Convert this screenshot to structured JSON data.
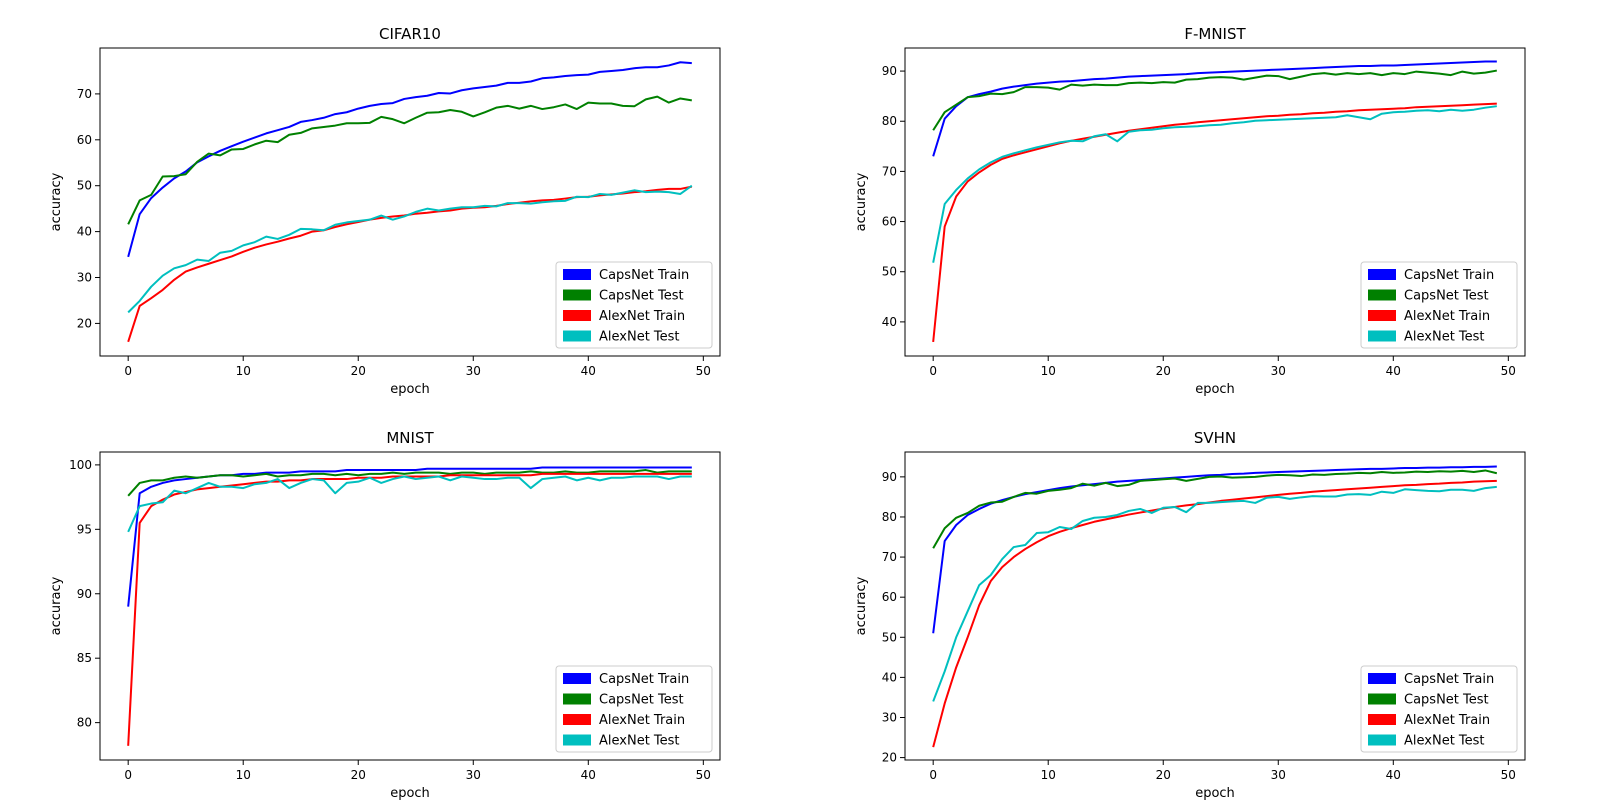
{
  "chart_data": [
    {
      "type": "line",
      "title": "CIFAR10",
      "xlabel": "epoch",
      "ylabel": "accuracy",
      "xlim": [
        -2.45,
        51.45
      ],
      "ylim": [
        12.9,
        80.0
      ],
      "xticks": [
        0,
        10,
        20,
        30,
        40,
        50
      ],
      "yticks": [
        20,
        30,
        40,
        50,
        60,
        70
      ],
      "legend_position": "lower-right",
      "series": [
        {
          "name": "CapsNet Train",
          "color": "#0000ff",
          "values": [
            34.5,
            43.8,
            47.3,
            49.6,
            51.6,
            53.1,
            55.1,
            56.4,
            57.6,
            58.6,
            59.6,
            60.5,
            61.4,
            62.1,
            62.8,
            63.9,
            64.3,
            64.8,
            65.6,
            66.0,
            66.8,
            67.4,
            67.8,
            68.0,
            68.9,
            69.3,
            69.6,
            70.2,
            70.1,
            70.8,
            71.2,
            71.5,
            71.8,
            72.4,
            72.4,
            72.7,
            73.4,
            73.6,
            73.9,
            74.1,
            74.2,
            74.8,
            75.0,
            75.2,
            75.6,
            75.8,
            75.8,
            76.2,
            76.9,
            76.7
          ]
        },
        {
          "name": "CapsNet Test",
          "color": "#008000",
          "values": [
            41.6,
            46.8,
            48.0,
            52.0,
            52.1,
            52.5,
            55.2,
            57.0,
            56.6,
            57.9,
            58.0,
            59.0,
            59.8,
            59.5,
            61.1,
            61.5,
            62.5,
            62.8,
            63.1,
            63.6,
            63.6,
            63.7,
            65.0,
            64.5,
            63.6,
            64.8,
            65.9,
            66.0,
            66.5,
            66.1,
            65.1,
            66.0,
            67.0,
            67.4,
            66.8,
            67.4,
            66.7,
            67.1,
            67.7,
            66.7,
            68.1,
            67.9,
            67.9,
            67.4,
            67.3,
            68.8,
            69.4,
            68.1,
            69.0,
            68.6
          ]
        },
        {
          "name": "AlexNet Train",
          "color": "#ff0000",
          "values": [
            16.0,
            23.8,
            25.5,
            27.3,
            29.5,
            31.3,
            32.2,
            33.0,
            33.8,
            34.6,
            35.6,
            36.5,
            37.2,
            37.8,
            38.5,
            39.1,
            40.0,
            40.3,
            41.0,
            41.6,
            42.1,
            42.6,
            43.0,
            43.3,
            43.5,
            43.9,
            44.1,
            44.4,
            44.6,
            45.0,
            45.2,
            45.3,
            45.6,
            46.0,
            46.3,
            46.6,
            46.8,
            46.9,
            47.2,
            47.5,
            47.6,
            47.9,
            48.1,
            48.3,
            48.6,
            48.8,
            49.1,
            49.3,
            49.3,
            49.8
          ]
        },
        {
          "name": "AlexNet Test",
          "color": "#00bfbf",
          "values": [
            22.4,
            24.9,
            28.0,
            30.4,
            32.0,
            32.7,
            33.9,
            33.6,
            35.4,
            35.8,
            37.0,
            37.7,
            38.9,
            38.4,
            39.3,
            40.6,
            40.5,
            40.3,
            41.5,
            42.0,
            42.3,
            42.6,
            43.5,
            42.6,
            43.3,
            44.3,
            45.0,
            44.6,
            45.0,
            45.3,
            45.3,
            45.6,
            45.5,
            46.2,
            46.2,
            46.1,
            46.4,
            46.6,
            46.7,
            47.6,
            47.5,
            48.2,
            48.0,
            48.5,
            49.0,
            48.6,
            48.7,
            48.6,
            48.2,
            50.0
          ]
        }
      ]
    },
    {
      "type": "line",
      "title": "F-MNIST",
      "xlabel": "epoch",
      "ylabel": "accuracy",
      "xlim": [
        -2.45,
        51.45
      ],
      "ylim": [
        33.2,
        94.6
      ],
      "xticks": [
        0,
        10,
        20,
        30,
        40,
        50
      ],
      "yticks": [
        40,
        50,
        60,
        70,
        80,
        90
      ],
      "legend_position": "lower-right",
      "series": [
        {
          "name": "CapsNet Train",
          "color": "#0000ff",
          "values": [
            73.0,
            80.5,
            83.0,
            84.8,
            85.4,
            85.9,
            86.5,
            86.9,
            87.2,
            87.5,
            87.7,
            87.9,
            88.0,
            88.2,
            88.4,
            88.5,
            88.7,
            88.9,
            89.0,
            89.1,
            89.2,
            89.3,
            89.4,
            89.6,
            89.7,
            89.8,
            89.9,
            90.0,
            90.1,
            90.2,
            90.3,
            90.4,
            90.5,
            90.6,
            90.7,
            90.8,
            90.9,
            91.0,
            91.0,
            91.1,
            91.1,
            91.2,
            91.3,
            91.4,
            91.5,
            91.6,
            91.7,
            91.8,
            91.9,
            91.9
          ]
        },
        {
          "name": "CapsNet Test",
          "color": "#008000",
          "values": [
            78.2,
            81.8,
            83.3,
            84.8,
            85.0,
            85.5,
            85.4,
            85.8,
            86.8,
            86.8,
            86.7,
            86.3,
            87.3,
            87.1,
            87.3,
            87.2,
            87.2,
            87.6,
            87.7,
            87.6,
            87.8,
            87.7,
            88.3,
            88.4,
            88.7,
            88.8,
            88.7,
            88.3,
            88.7,
            89.1,
            89.0,
            88.4,
            88.9,
            89.4,
            89.6,
            89.3,
            89.6,
            89.4,
            89.6,
            89.2,
            89.6,
            89.4,
            89.9,
            89.7,
            89.5,
            89.2,
            89.9,
            89.5,
            89.7,
            90.1
          ]
        },
        {
          "name": "AlexNet Train",
          "color": "#ff0000",
          "values": [
            36.0,
            59.0,
            65.0,
            68.0,
            69.8,
            71.3,
            72.5,
            73.2,
            73.8,
            74.4,
            75.0,
            75.6,
            76.1,
            76.5,
            76.9,
            77.3,
            77.7,
            78.1,
            78.4,
            78.7,
            79.0,
            79.3,
            79.5,
            79.8,
            80.0,
            80.2,
            80.4,
            80.6,
            80.8,
            81.0,
            81.1,
            81.3,
            81.4,
            81.6,
            81.7,
            81.9,
            82.0,
            82.2,
            82.3,
            82.4,
            82.5,
            82.6,
            82.8,
            82.9,
            83.0,
            83.1,
            83.2,
            83.3,
            83.4,
            83.5
          ]
        },
        {
          "name": "AlexNet Test",
          "color": "#00bfbf",
          "values": [
            51.8,
            63.5,
            66.3,
            68.6,
            70.4,
            71.8,
            72.9,
            73.6,
            74.2,
            74.8,
            75.3,
            75.8,
            76.1,
            76.0,
            77.0,
            77.4,
            76.0,
            77.9,
            78.2,
            78.3,
            78.6,
            78.8,
            78.9,
            79.0,
            79.2,
            79.3,
            79.6,
            79.8,
            80.1,
            80.2,
            80.3,
            80.4,
            80.5,
            80.6,
            80.7,
            80.8,
            81.2,
            80.8,
            80.4,
            81.5,
            81.8,
            81.9,
            82.1,
            82.2,
            82.0,
            82.3,
            82.1,
            82.3,
            82.7,
            83.0
          ]
        }
      ]
    },
    {
      "type": "line",
      "title": "MNIST",
      "xlabel": "epoch",
      "ylabel": "accuracy",
      "xlim": [
        -2.45,
        51.45
      ],
      "ylim": [
        77.1,
        101.0
      ],
      "xticks": [
        0,
        10,
        20,
        30,
        40,
        50
      ],
      "yticks": [
        80,
        85,
        90,
        95,
        100
      ],
      "legend_position": "lower-right",
      "series": [
        {
          "name": "CapsNet Train",
          "color": "#0000ff",
          "values": [
            89.0,
            97.8,
            98.3,
            98.6,
            98.8,
            98.9,
            99.0,
            99.1,
            99.2,
            99.2,
            99.3,
            99.3,
            99.4,
            99.4,
            99.4,
            99.5,
            99.5,
            99.5,
            99.5,
            99.6,
            99.6,
            99.6,
            99.6,
            99.6,
            99.6,
            99.6,
            99.7,
            99.7,
            99.7,
            99.7,
            99.7,
            99.7,
            99.7,
            99.7,
            99.7,
            99.7,
            99.8,
            99.8,
            99.8,
            99.8,
            99.8,
            99.8,
            99.8,
            99.8,
            99.8,
            99.8,
            99.8,
            99.8,
            99.8,
            99.8
          ]
        },
        {
          "name": "CapsNet Test",
          "color": "#008000",
          "values": [
            97.6,
            98.6,
            98.8,
            98.8,
            99.0,
            99.1,
            99.0,
            99.1,
            99.2,
            99.2,
            99.1,
            99.2,
            99.3,
            99.1,
            99.2,
            99.2,
            99.3,
            99.3,
            99.2,
            99.3,
            99.2,
            99.3,
            99.3,
            99.4,
            99.3,
            99.4,
            99.4,
            99.4,
            99.3,
            99.4,
            99.4,
            99.3,
            99.4,
            99.4,
            99.4,
            99.5,
            99.4,
            99.4,
            99.5,
            99.4,
            99.4,
            99.5,
            99.5,
            99.5,
            99.5,
            99.6,
            99.4,
            99.5,
            99.5,
            99.5
          ]
        },
        {
          "name": "AlexNet Train",
          "color": "#ff0000",
          "values": [
            78.2,
            95.5,
            96.8,
            97.3,
            97.7,
            97.9,
            98.1,
            98.2,
            98.3,
            98.4,
            98.5,
            98.6,
            98.7,
            98.7,
            98.8,
            98.8,
            98.9,
            98.9,
            98.9,
            98.9,
            99.0,
            99.0,
            99.0,
            99.1,
            99.1,
            99.1,
            99.1,
            99.1,
            99.2,
            99.2,
            99.2,
            99.2,
            99.2,
            99.2,
            99.2,
            99.2,
            99.3,
            99.3,
            99.3,
            99.3,
            99.3,
            99.3,
            99.3,
            99.3,
            99.3,
            99.3,
            99.3,
            99.3,
            99.3,
            99.3
          ]
        },
        {
          "name": "AlexNet Test",
          "color": "#00bfbf",
          "values": [
            94.8,
            96.8,
            97.0,
            97.1,
            98.0,
            97.8,
            98.2,
            98.6,
            98.3,
            98.3,
            98.2,
            98.5,
            98.6,
            98.9,
            98.2,
            98.6,
            98.9,
            98.8,
            97.8,
            98.6,
            98.7,
            99.0,
            98.6,
            98.9,
            99.1,
            98.9,
            99.0,
            99.1,
            98.8,
            99.1,
            99.0,
            98.9,
            98.9,
            99.0,
            99.0,
            98.2,
            98.9,
            99.0,
            99.1,
            98.8,
            99.0,
            98.8,
            99.0,
            99.0,
            99.1,
            99.1,
            99.1,
            98.9,
            99.1,
            99.1
          ]
        }
      ]
    },
    {
      "type": "line",
      "title": "SVHN",
      "xlabel": "epoch",
      "ylabel": "accuracy",
      "xlim": [
        -2.45,
        51.45
      ],
      "ylim": [
        19.4,
        96.2
      ],
      "xticks": [
        0,
        10,
        20,
        30,
        40,
        50
      ],
      "yticks": [
        20,
        30,
        40,
        50,
        60,
        70,
        80,
        90
      ],
      "legend_position": "lower-right",
      "series": [
        {
          "name": "CapsNet Train",
          "color": "#0000ff",
          "values": [
            51.0,
            74.0,
            78.0,
            80.5,
            82.0,
            83.3,
            84.2,
            85.0,
            85.7,
            86.2,
            86.7,
            87.2,
            87.6,
            87.9,
            88.2,
            88.5,
            88.8,
            89.0,
            89.2,
            89.4,
            89.6,
            89.8,
            90.0,
            90.2,
            90.4,
            90.5,
            90.7,
            90.8,
            91.0,
            91.1,
            91.2,
            91.3,
            91.4,
            91.5,
            91.6,
            91.7,
            91.8,
            91.9,
            92.0,
            92.0,
            92.1,
            92.2,
            92.2,
            92.3,
            92.3,
            92.4,
            92.4,
            92.5,
            92.5,
            92.6
          ]
        },
        {
          "name": "CapsNet Test",
          "color": "#008000",
          "values": [
            72.2,
            77.2,
            79.8,
            81.0,
            82.8,
            83.6,
            83.8,
            85.0,
            86.0,
            85.8,
            86.5,
            86.8,
            87.2,
            88.3,
            87.8,
            88.5,
            87.7,
            88.0,
            89.0,
            89.2,
            89.4,
            89.6,
            89.0,
            89.5,
            90.0,
            90.1,
            89.8,
            89.9,
            90.0,
            90.3,
            90.5,
            90.4,
            90.2,
            90.6,
            90.5,
            90.7,
            90.8,
            91.0,
            90.9,
            91.2,
            91.0,
            91.1,
            91.3,
            91.2,
            91.4,
            91.3,
            91.5,
            91.2,
            91.6,
            90.9
          ]
        },
        {
          "name": "AlexNet Train",
          "color": "#ff0000",
          "values": [
            22.6,
            33.5,
            42.5,
            50.0,
            58.0,
            64.0,
            67.5,
            70.0,
            72.0,
            73.7,
            75.2,
            76.3,
            77.2,
            78.0,
            78.8,
            79.4,
            80.0,
            80.6,
            81.1,
            81.6,
            82.1,
            82.5,
            82.9,
            83.2,
            83.6,
            84.0,
            84.3,
            84.6,
            84.9,
            85.2,
            85.5,
            85.8,
            86.0,
            86.3,
            86.5,
            86.7,
            86.9,
            87.1,
            87.3,
            87.5,
            87.7,
            87.9,
            88.0,
            88.2,
            88.3,
            88.5,
            88.6,
            88.8,
            88.9,
            89.0
          ]
        },
        {
          "name": "AlexNet Test",
          "color": "#00bfbf",
          "values": [
            34.0,
            41.5,
            50.0,
            56.5,
            63.0,
            65.5,
            69.5,
            72.5,
            73.0,
            76.0,
            76.2,
            77.5,
            77.0,
            79.0,
            79.8,
            80.0,
            80.5,
            81.5,
            82.0,
            81.0,
            82.3,
            82.5,
            81.2,
            83.5,
            83.5,
            83.7,
            83.9,
            84.0,
            83.5,
            84.8,
            85.0,
            84.5,
            84.9,
            85.2,
            85.1,
            85.1,
            85.6,
            85.7,
            85.5,
            86.3,
            86.0,
            86.9,
            86.7,
            86.5,
            86.4,
            86.8,
            86.8,
            86.5,
            87.2,
            87.5
          ]
        }
      ]
    }
  ]
}
